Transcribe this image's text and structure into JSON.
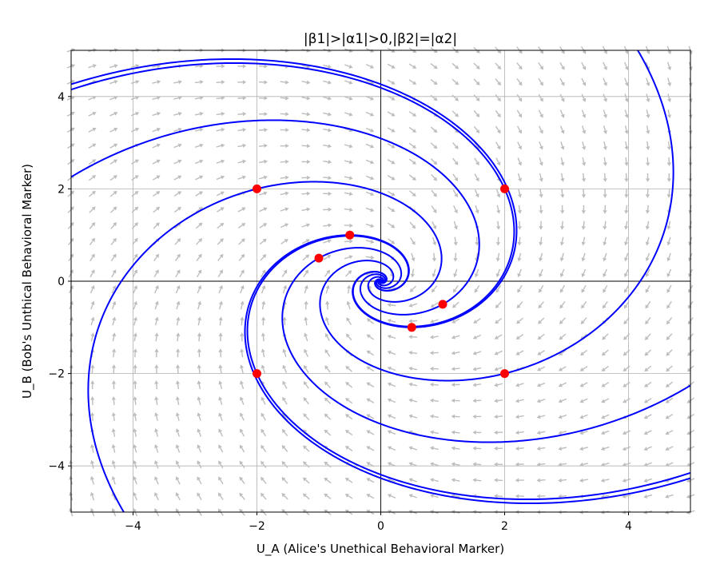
{
  "chart_data": {
    "type": "scatter",
    "title": "|β1|>|α1|>0,|β2|=|α2|",
    "xlabel": "U_A (Alice's Unethical Behavioral Marker)",
    "ylabel": "U_B (Bob's Unthical Behavioral Marker)",
    "xlim": [
      -5,
      5
    ],
    "ylim": [
      -5,
      5
    ],
    "xticks": [
      -4,
      -2,
      0,
      2,
      4
    ],
    "yticks": [
      -4,
      -2,
      0,
      2,
      4
    ],
    "xtick_labels": [
      "−4",
      "−2",
      "0",
      "2",
      "4"
    ],
    "ytick_labels": [
      "−4",
      "−2",
      "0",
      "2",
      "4"
    ],
    "grid": true,
    "zero_lines": true,
    "vector_field": {
      "a": -0.5,
      "b": 1.0,
      "c": -1.0,
      "d": -0.5,
      "color": "#bdbdbd"
    },
    "initial_points": [
      {
        "x": -2,
        "y": 2
      },
      {
        "x": 2,
        "y": 2
      },
      {
        "x": -2,
        "y": -2
      },
      {
        "x": 2,
        "y": -2
      },
      {
        "x": -0.5,
        "y": 1
      },
      {
        "x": -1,
        "y": 0.5
      },
      {
        "x": 0.5,
        "y": -1
      },
      {
        "x": 1,
        "y": -0.5
      }
    ],
    "trajectory_color": "#0000ff",
    "point_color": "#ff0000"
  }
}
